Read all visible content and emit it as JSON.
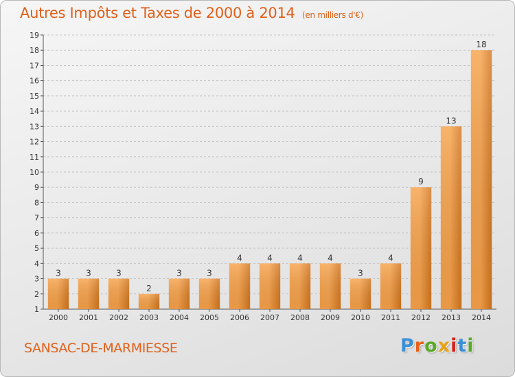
{
  "header": {
    "title": "Autres Impôts et Taxes de 2000 à 2014",
    "unit": "(en milliers d'€)"
  },
  "footer": {
    "commune": "SANSAC-DE-MARMIESSE",
    "logo_text": "Proxiti",
    "logo_letter_colors": [
      "#3b8fd6",
      "#e8601a",
      "#5aaa2a",
      "#e8a21a",
      "#d8201a",
      "#3b8fd6",
      "#5aaa2a"
    ]
  },
  "colors": {
    "accent": "#e0601a",
    "bar_light": "#f7a24a",
    "bar_dark": "#d2761e"
  },
  "chart_data": {
    "type": "bar",
    "categories": [
      "2000",
      "2001",
      "2002",
      "2003",
      "2004",
      "2005",
      "2006",
      "2007",
      "2008",
      "2009",
      "2010",
      "2011",
      "2012",
      "2013",
      "2014"
    ],
    "values": [
      3,
      3,
      3,
      2,
      3,
      3,
      4,
      4,
      4,
      4,
      3,
      4,
      9,
      13,
      18
    ],
    "data_labels": [
      "3",
      "3",
      "3",
      "2",
      "3",
      "3",
      "4",
      "4",
      "4",
      "4",
      "3",
      "4",
      "9",
      "13",
      "18"
    ],
    "title": "Autres Impôts et Taxes de 2000 à 2014",
    "xlabel": "",
    "ylabel": "",
    "ylim": [
      1,
      19
    ],
    "yticks": [
      1,
      2,
      3,
      4,
      5,
      6,
      7,
      8,
      9,
      10,
      11,
      12,
      13,
      14,
      15,
      16,
      17,
      18,
      19
    ],
    "grid": "horizontal dashed",
    "legend": "none"
  }
}
